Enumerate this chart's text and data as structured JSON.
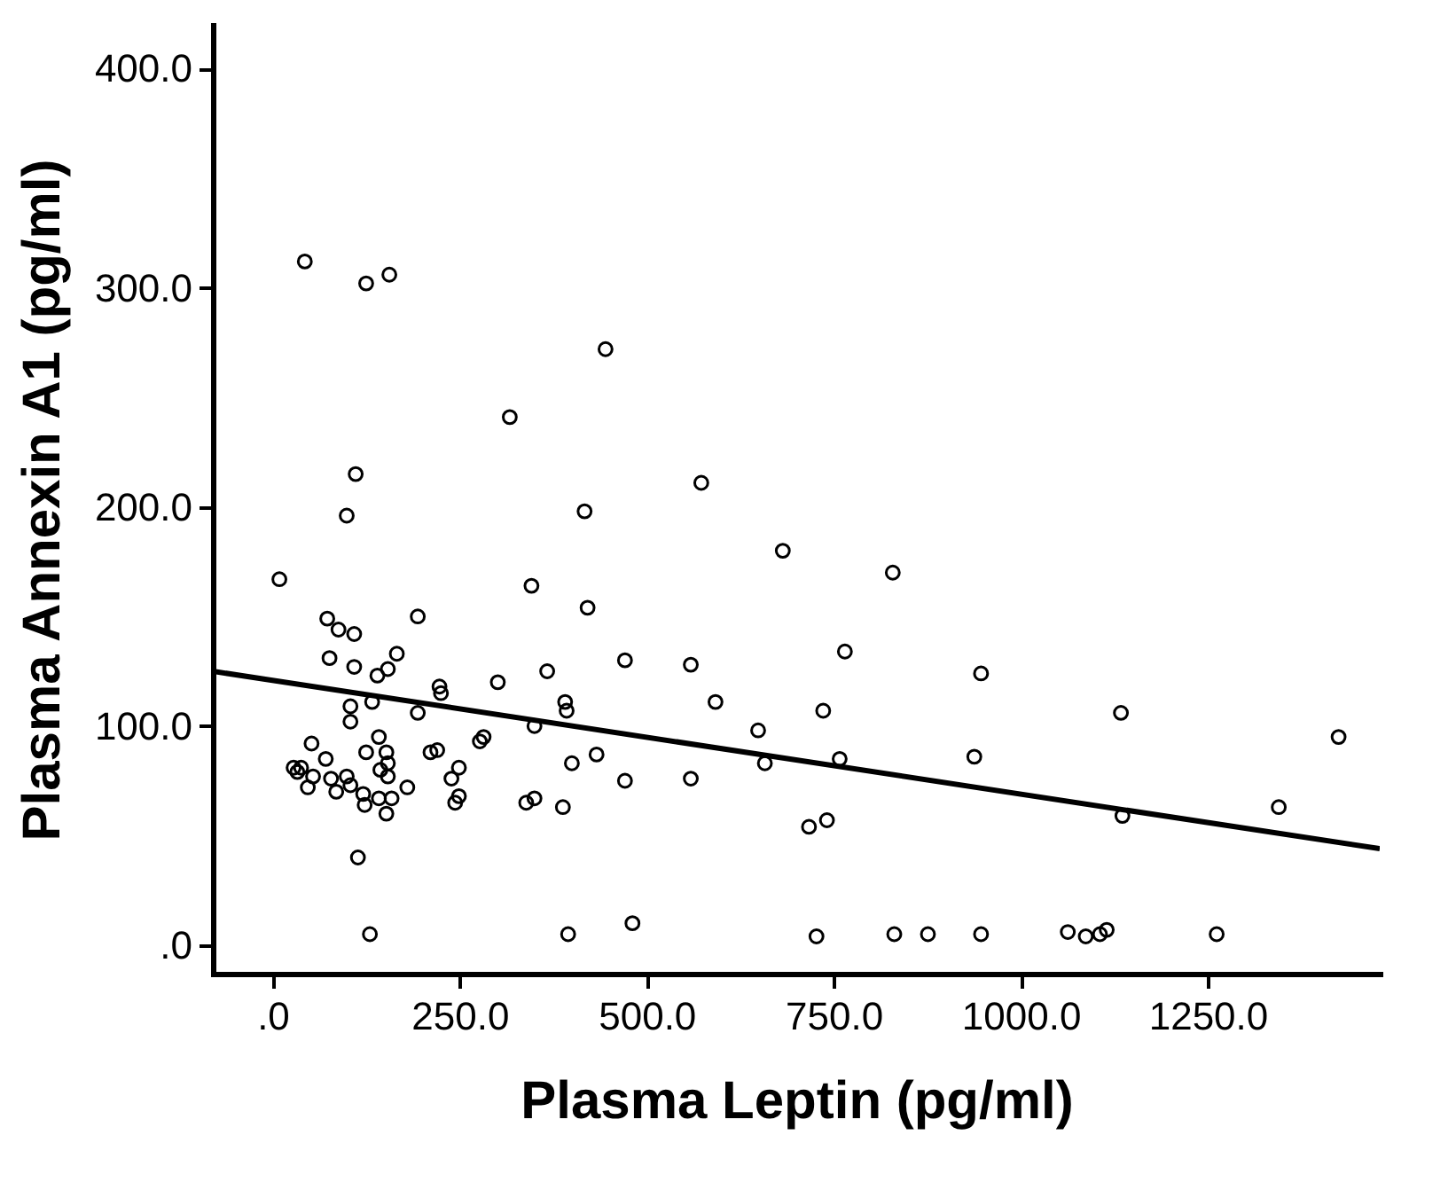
{
  "chart_data": {
    "type": "scatter",
    "xlabel": "Plasma Leptin (pg/ml)",
    "ylabel": "Plasma Annexin A1 (pg/ml)",
    "xlim": [
      -80,
      1480
    ],
    "ylim": [
      -13,
      420
    ],
    "xticks": [
      {
        "value": 0,
        "label": ".0"
      },
      {
        "value": 250,
        "label": "250.0"
      },
      {
        "value": 500,
        "label": "500.0"
      },
      {
        "value": 750,
        "label": "750.0"
      },
      {
        "value": 1000,
        "label": "1000.0"
      },
      {
        "value": 1250,
        "label": "1250.0"
      }
    ],
    "yticks": [
      {
        "value": 0,
        "label": ".0"
      },
      {
        "value": 100,
        "label": "100.0"
      },
      {
        "value": 200,
        "label": "200.0"
      },
      {
        "value": 300,
        "label": "300.0"
      },
      {
        "value": 400,
        "label": "400.0"
      }
    ],
    "grid": false,
    "series": [
      {
        "marker": "circle",
        "color": "#000000",
        "x": [
          9,
          43,
          125,
          156,
          445,
          317,
          111,
          99,
          573,
          417,
          346,
          421,
          73,
          88,
          109,
          194,
          76,
          109,
          166,
          154,
          140,
          471,
          367,
          559,
          223,
          225,
          301,
          104,
          133,
          194,
          391,
          393,
          592,
          104,
          350,
          649,
          52,
          142,
          71,
          125,
          152,
          154,
          211,
          220,
          277,
          282,
          433,
          400,
          658,
          28,
          38,
          33,
          54,
          47,
          78,
          99,
          104,
          85,
          144,
          154,
          121,
          123,
          142,
          159,
          152,
          180,
          249,
          239,
          249,
          244,
          339,
          350,
          388,
          471,
          559,
          114,
          130,
          395,
          481,
          682,
          829,
          765,
          947,
          736,
          1134,
          758,
          938,
          1425,
          717,
          741,
          1136,
          1345,
          727,
          831,
          876,
          947,
          1063,
          1087,
          1106,
          1115,
          1262
        ],
        "values": [
          167,
          312,
          302,
          306,
          272,
          241,
          215,
          196,
          211,
          198,
          164,
          154,
          149,
          144,
          142,
          150,
          131,
          127,
          133,
          126,
          123,
          130,
          125,
          128,
          118,
          115,
          120,
          109,
          111,
          106,
          111,
          107,
          111,
          102,
          100,
          98,
          92,
          95,
          85,
          88,
          88,
          83,
          88,
          89,
          93,
          95,
          87,
          83,
          83,
          81,
          81,
          79,
          77,
          72,
          76,
          77,
          73,
          70,
          80,
          77,
          69,
          64,
          67,
          67,
          60,
          72,
          81,
          76,
          68,
          65,
          65,
          67,
          63,
          75,
          76,
          40,
          5,
          5,
          10,
          180,
          170,
          134,
          124,
          107,
          106,
          85,
          86,
          95,
          54,
          57,
          59,
          63,
          4,
          5,
          5,
          5,
          6,
          4,
          5,
          7,
          5
        ]
      },
      {
        "type": "line",
        "color": "#000000",
        "x": [
          -80,
          1480
        ],
        "values": [
          125,
          44
        ]
      }
    ]
  }
}
